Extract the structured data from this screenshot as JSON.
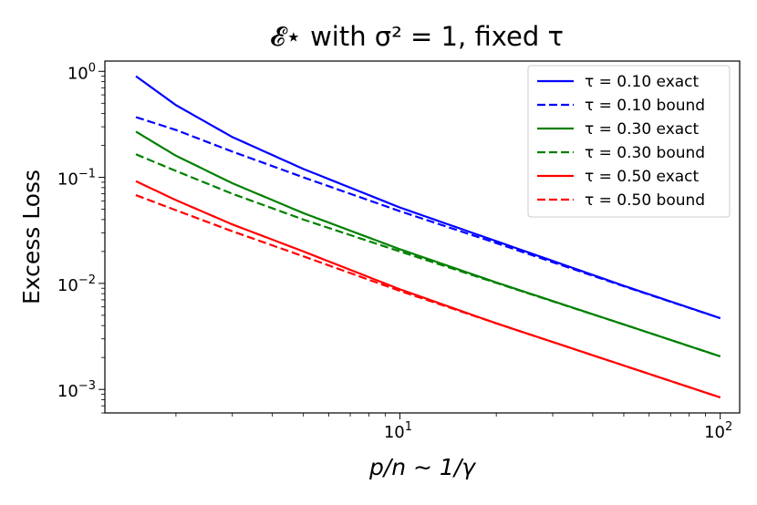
{
  "chart_data": {
    "type": "line",
    "title": "𝓔⋆ with σ² = 1, fixed τ",
    "xlabel": "p/n ∼ 1/γ",
    "ylabel": "Excess Loss",
    "xscale": "log",
    "yscale": "log",
    "xlim": [
      1.2,
      115
    ],
    "ylim": [
      0.0006,
      1.25
    ],
    "grid": false,
    "legend_position": "top-right",
    "x_ticks": [
      {
        "value": 10,
        "base": "10",
        "exp": "1"
      },
      {
        "value": 100,
        "base": "10",
        "exp": "2"
      }
    ],
    "y_ticks": [
      {
        "value": 1,
        "base": "10",
        "exp": "0"
      },
      {
        "value": 0.1,
        "base": "10",
        "exp": "−1"
      },
      {
        "value": 0.01,
        "base": "10",
        "exp": "−2"
      },
      {
        "value": 0.001,
        "base": "10",
        "exp": "−3"
      }
    ],
    "x": [
      1.5,
      2,
      3,
      5,
      10,
      20,
      50,
      100
    ],
    "series": [
      {
        "name": "τ = 0.10 exact",
        "color": "#0000ff",
        "dash": "solid",
        "values": [
          0.9,
          0.48,
          0.24,
          0.12,
          0.052,
          0.025,
          0.0095,
          0.0047
        ]
      },
      {
        "name": "τ = 0.10 bound",
        "color": "#0000ff",
        "dash": "dashed",
        "values": [
          0.37,
          0.28,
          0.175,
          0.1,
          0.048,
          0.024,
          0.0094,
          0.0047
        ]
      },
      {
        "name": "τ = 0.30 exact",
        "color": "#008000",
        "dash": "solid",
        "values": [
          0.27,
          0.16,
          0.088,
          0.046,
          0.021,
          0.0102,
          0.0041,
          0.00205
        ]
      },
      {
        "name": "τ = 0.30 bound",
        "color": "#008000",
        "dash": "dashed",
        "values": [
          0.165,
          0.115,
          0.07,
          0.04,
          0.02,
          0.0101,
          0.0041,
          0.00205
        ]
      },
      {
        "name": "τ = 0.50 exact",
        "color": "#ff0000",
        "dash": "solid",
        "values": [
          0.092,
          0.061,
          0.036,
          0.02,
          0.0088,
          0.0042,
          0.00168,
          0.00084
        ]
      },
      {
        "name": "τ = 0.50 bound",
        "color": "#ff0000",
        "dash": "dashed",
        "values": [
          0.068,
          0.049,
          0.031,
          0.018,
          0.0085,
          0.0042,
          0.00168,
          0.00084
        ]
      }
    ]
  }
}
